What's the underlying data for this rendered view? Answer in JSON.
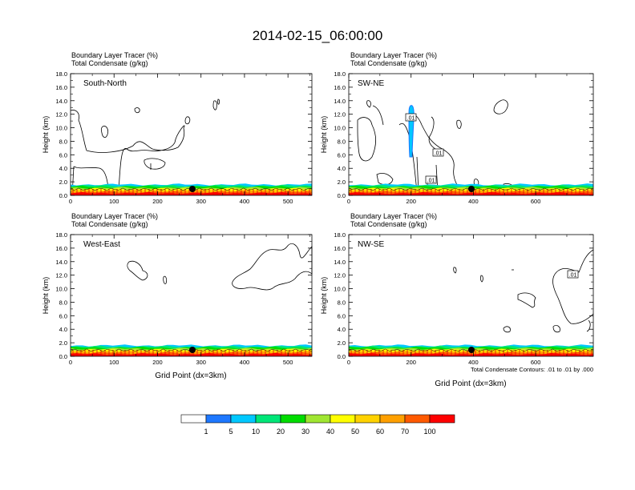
{
  "title": "2014-02-15_06:00:00",
  "field_labels": {
    "tracer": "Boundary Layer Tracer   (%)",
    "condensate": "Total Condensate   (g/kg)"
  },
  "x_axis_title": "Grid Point (dx=3km)",
  "y_axis_title": "Height (km)",
  "contour_note": "Total Condensate Contours: .01 to .01 by .000",
  "contour_label": ".01",
  "colorbar": {
    "colors": [
      "#ffffff",
      "#1e78ff",
      "#00c8ff",
      "#00e678",
      "#00dc00",
      "#a0e632",
      "#ffff00",
      "#ffd200",
      "#ffa000",
      "#ff5a00",
      "#ff0000"
    ],
    "labels": [
      "1",
      "5",
      "10",
      "20",
      "30",
      "40",
      "50",
      "60",
      "70",
      "100"
    ]
  },
  "chart_data": [
    {
      "type": "contour-cross-section",
      "name": "South-North",
      "xlim": [
        0,
        555
      ],
      "xticks": [
        0,
        100,
        200,
        300,
        400,
        500
      ],
      "ylim": [
        0,
        18
      ],
      "yticks": [
        "0.0",
        "2.0",
        "4.0",
        "6.0",
        "8.0",
        "10.0",
        "12.0",
        "14.0",
        "16.0",
        "18.0"
      ],
      "marker_x": 277,
      "xlabel": "",
      "labels_shown": 0
    },
    {
      "type": "contour-cross-section",
      "name": "SW-NE",
      "xlim": [
        0,
        785
      ],
      "xticks": [
        0,
        200,
        400,
        600
      ],
      "ylim": [
        0,
        18
      ],
      "yticks": [
        "0.0",
        "2.0",
        "4.0",
        "6.0",
        "8.0",
        "10.0",
        "12.0",
        "14.0",
        "16.0",
        "18.0"
      ],
      "marker_x": 393,
      "xlabel": "",
      "labels_shown": 3
    },
    {
      "type": "contour-cross-section",
      "name": "West-East",
      "xlim": [
        0,
        555
      ],
      "xticks": [
        0,
        100,
        200,
        300,
        400,
        500
      ],
      "ylim": [
        0,
        18
      ],
      "yticks": [
        "0.0",
        "2.0",
        "4.0",
        "6.0",
        "8.0",
        "10.0",
        "12.0",
        "14.0",
        "16.0",
        "18.0"
      ],
      "marker_x": 277,
      "xlabel": "Grid Point (dx=3km)",
      "labels_shown": 0
    },
    {
      "type": "contour-cross-section",
      "name": "NW-SE",
      "xlim": [
        0,
        785
      ],
      "xticks": [
        0,
        200,
        400,
        600
      ],
      "ylim": [
        0,
        18
      ],
      "yticks": [
        "0.0",
        "2.0",
        "4.0",
        "6.0",
        "8.0",
        "10.0",
        "12.0",
        "14.0",
        "16.0",
        "18.0"
      ],
      "marker_x": 393,
      "xlabel": "Grid Point (dx=3km)",
      "labels_shown": 1
    }
  ]
}
